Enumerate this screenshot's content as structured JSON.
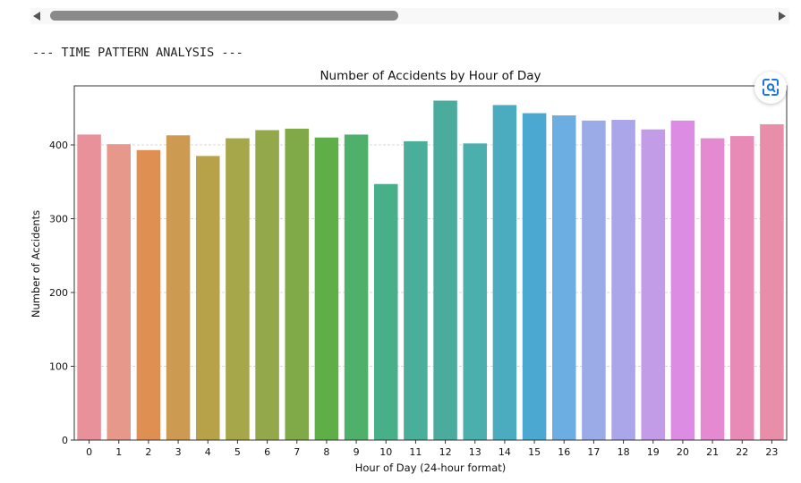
{
  "output": {
    "text": "--- TIME PATTERN ANALYSIS ---"
  },
  "icons": {
    "scroll_left": "triangle-left-icon",
    "scroll_right": "triangle-right-icon",
    "lens": "image-search-icon"
  },
  "chart_data": {
    "type": "bar",
    "title": "Number of Accidents by Hour of Day",
    "xlabel": "Hour of Day (24-hour format)",
    "ylabel": "Number of Accidents",
    "categories": [
      "0",
      "1",
      "2",
      "3",
      "4",
      "5",
      "6",
      "7",
      "8",
      "9",
      "10",
      "11",
      "12",
      "13",
      "14",
      "15",
      "16",
      "17",
      "18",
      "19",
      "20",
      "21",
      "22",
      "23"
    ],
    "values": [
      414,
      401,
      393,
      413,
      385,
      409,
      420,
      422,
      410,
      414,
      347,
      405,
      460,
      402,
      454,
      443,
      440,
      433,
      434,
      421,
      433,
      409,
      412,
      428
    ],
    "colors": [
      "#e8919b",
      "#e6998a",
      "#e08f52",
      "#cd9a52",
      "#b7a24a",
      "#a6a64a",
      "#93a84a",
      "#80aa48",
      "#5fae48",
      "#4fb06c",
      "#48b089",
      "#49ae9a",
      "#4bac9e",
      "#4aafad",
      "#4aacbe",
      "#4ba8d0",
      "#6daee2",
      "#9aabe8",
      "#aba6ea",
      "#c39ce8",
      "#dc8de3",
      "#e58ad0",
      "#e88ab6",
      "#e98ea8"
    ],
    "ylim": [
      0,
      480
    ],
    "yticks": [
      0,
      100,
      200,
      300,
      400
    ],
    "grid": "horizontal dashed"
  }
}
